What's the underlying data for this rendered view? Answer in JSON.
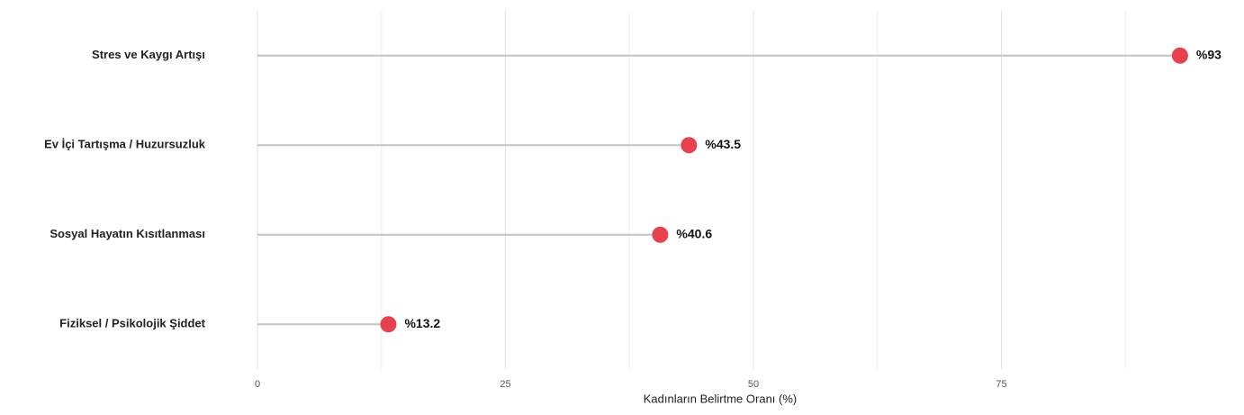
{
  "chart_data": {
    "type": "lollipop",
    "categories": [
      "Stres ve Kaygı Artışı",
      "Ev İçi Tartışma / Huzursuzluk",
      "Sosyal Hayatın Kısıtlanması",
      "Fiziksel / Psikolojik Şiddet"
    ],
    "values": [
      93,
      43.5,
      40.6,
      13.2
    ],
    "value_labels": [
      "%93",
      "%43.5",
      "%40.6",
      "%13.2"
    ],
    "color": "#e8414e",
    "stem_color": "#c4c4c4",
    "xlabel": "Kadınların Belirtme Oranı (%)",
    "xlim": [
      0,
      98
    ],
    "xticks": [
      0,
      25,
      50,
      75
    ],
    "minor_xticks": [
      12.5,
      37.5,
      62.5,
      87.5
    ],
    "grid": true
  }
}
